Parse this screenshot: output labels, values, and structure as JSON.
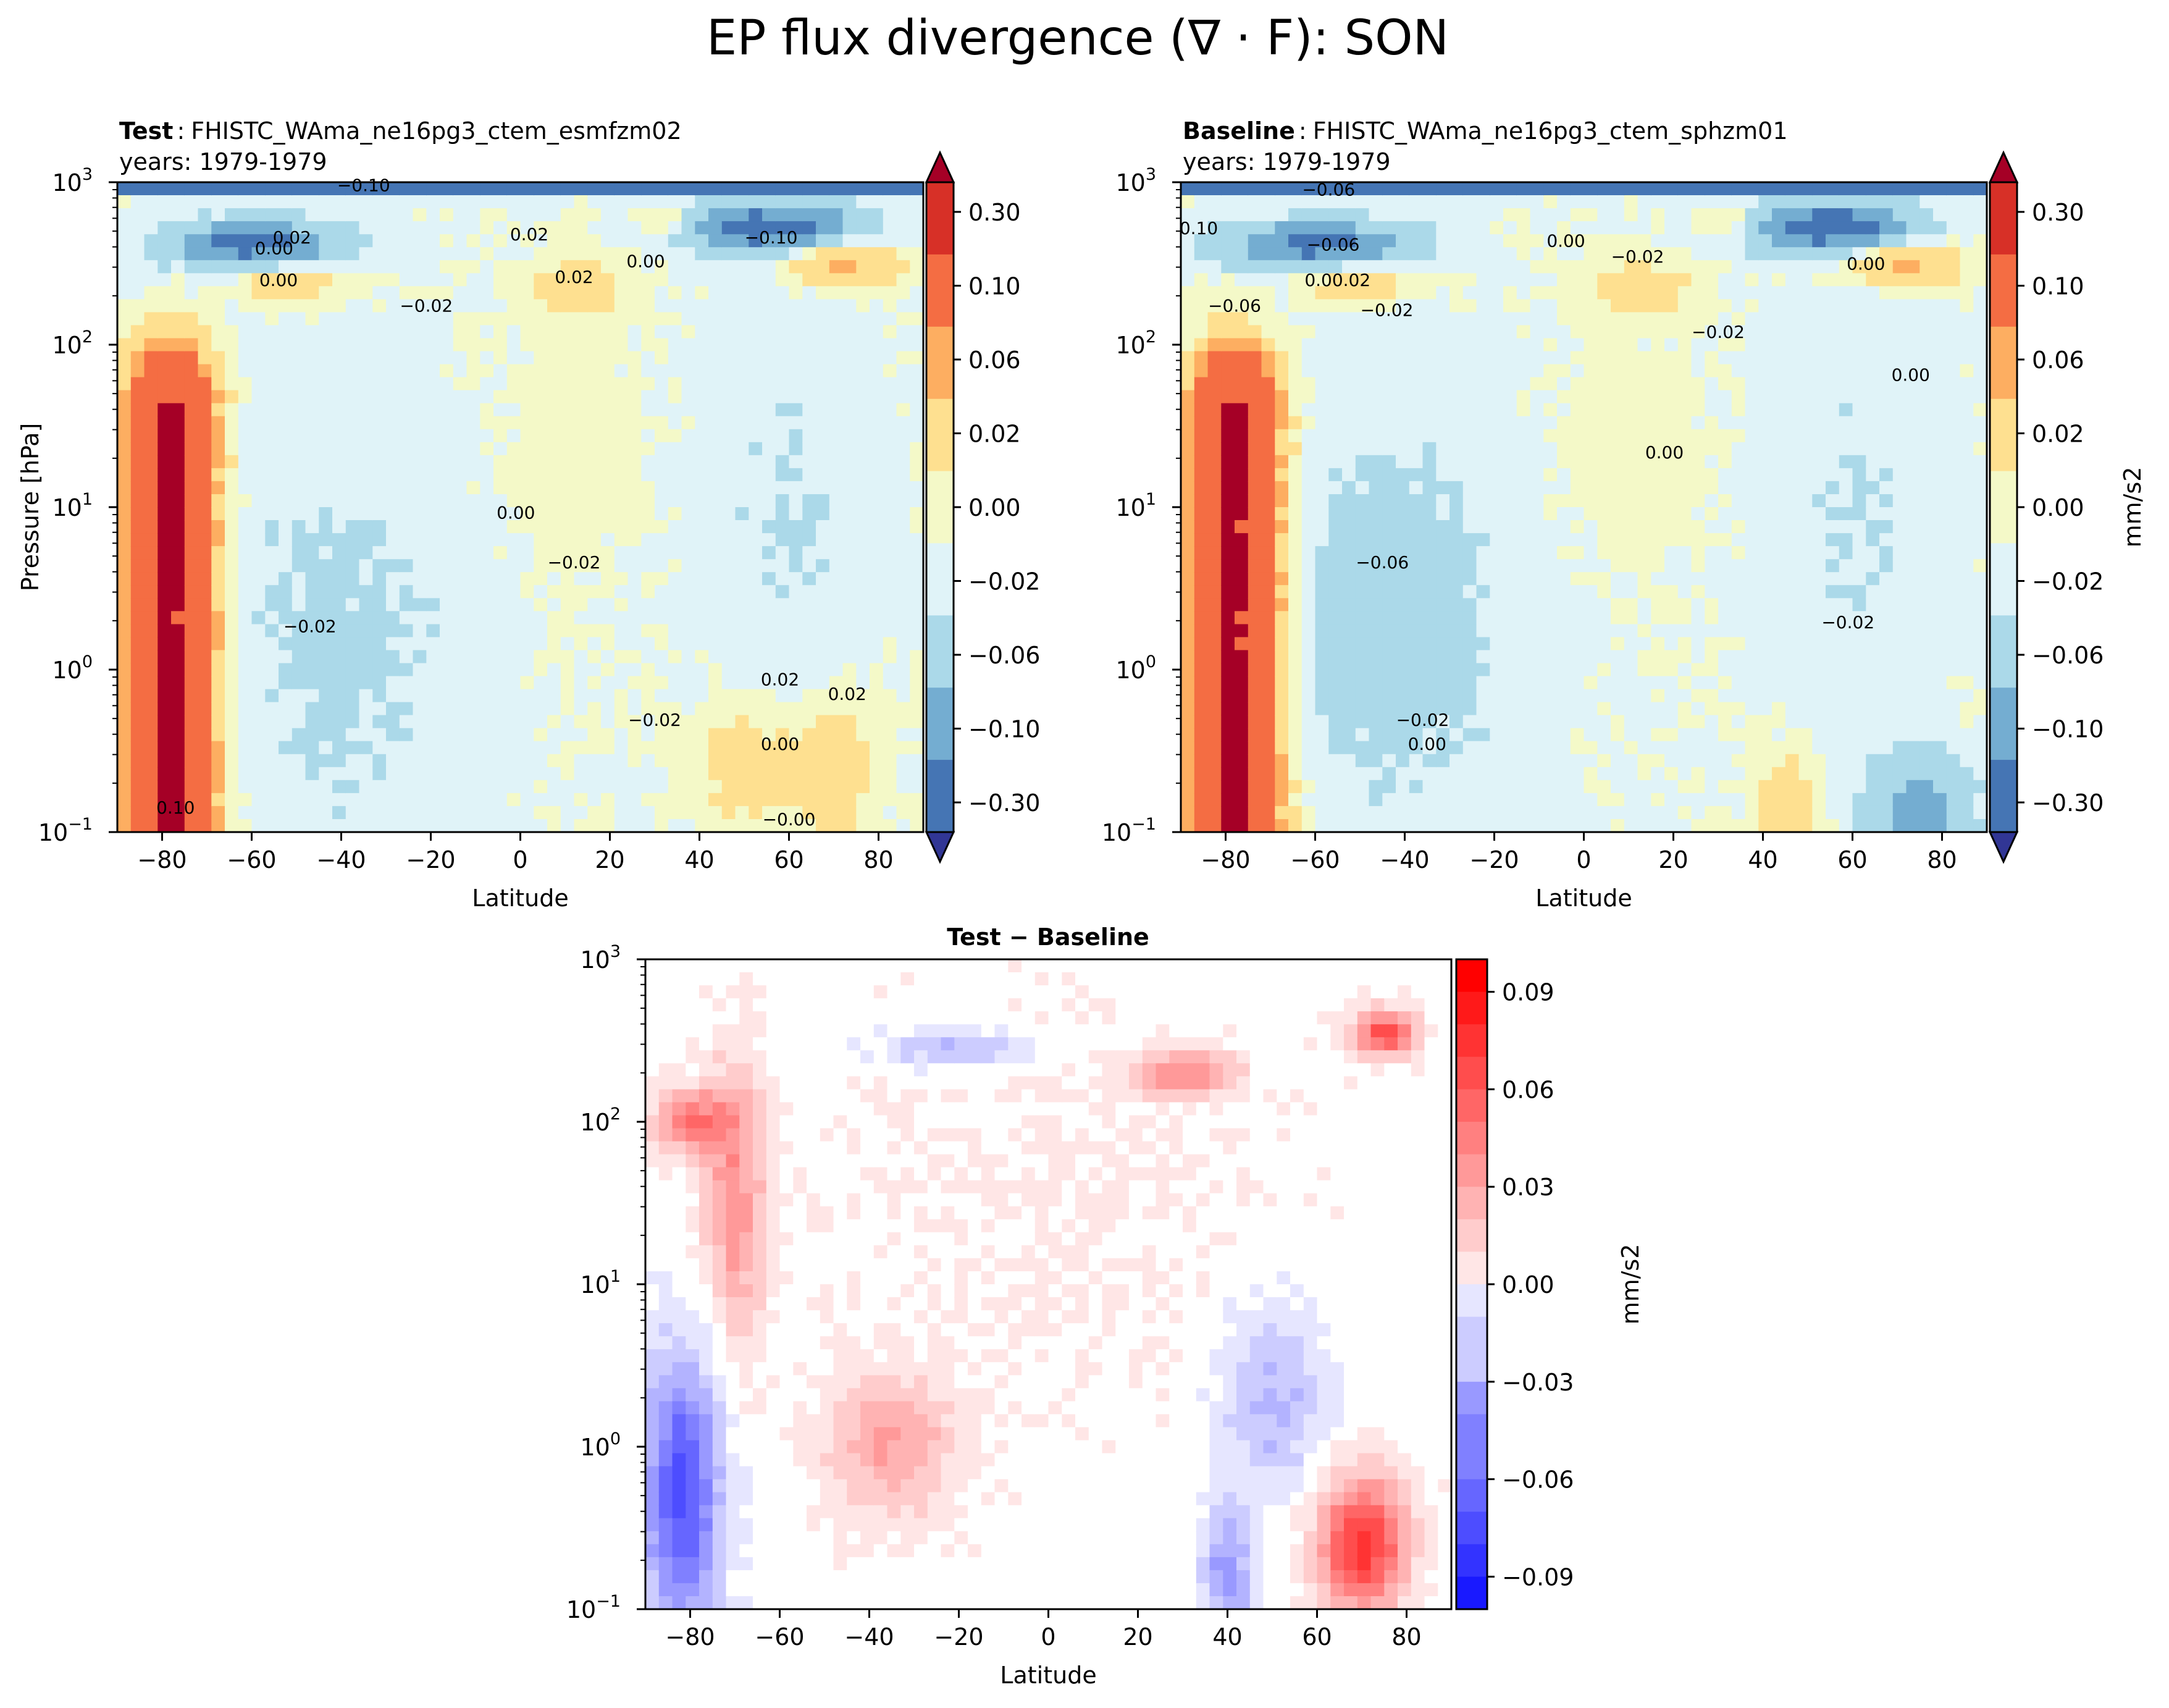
{
  "figure": {
    "title": "EP flux divergence (∇ · F): SON"
  },
  "chart_data": [
    {
      "id": "test",
      "type": "heatmap",
      "title_bold": "Test",
      "title_sep": ":",
      "title_case": "FHISTC_WAma_ne16pg3_ctem_esmfzm02",
      "subtitle": "years: 1979-1979",
      "xlabel": "Latitude",
      "ylabel": "Pressure [hPa]",
      "xlim": [
        -90,
        90
      ],
      "ylim": [
        1000,
        0.1
      ],
      "yscale": "log",
      "xticks": [
        "−80",
        "−60",
        "−40",
        "−20",
        "0",
        "20",
        "40",
        "60",
        "80"
      ],
      "xtick_values": [
        -80,
        -60,
        -40,
        -20,
        0,
        20,
        40,
        60,
        80
      ],
      "yticks": [
        {
          "base": "10",
          "exp": "−1",
          "value": 0.1
        },
        {
          "base": "10",
          "exp": "0",
          "value": 1
        },
        {
          "base": "10",
          "exp": "1",
          "value": 10
        },
        {
          "base": "10",
          "exp": "2",
          "value": 100
        },
        {
          "base": "10",
          "exp": "3",
          "value": 1000
        }
      ],
      "contour_labels": [
        {
          "text": "0.10",
          "lat": -77,
          "p": 0.13
        },
        {
          "text": "−0.02",
          "lat": 30,
          "p": 0.45
        },
        {
          "text": "−0.02",
          "lat": -47,
          "p": 1.7
        },
        {
          "text": "0.00",
          "lat": 58,
          "p": 0.32
        },
        {
          "text": "0.02",
          "lat": 58,
          "p": 0.8
        },
        {
          "text": "0.02",
          "lat": 73,
          "p": 0.65
        },
        {
          "text": "−0.00",
          "lat": 60,
          "p": 0.11
        },
        {
          "text": "−0.02",
          "lat": 12,
          "p": 4.2
        },
        {
          "text": "0.00",
          "lat": -1,
          "p": 8.5
        },
        {
          "text": "−0.02",
          "lat": -21,
          "p": 160
        },
        {
          "text": "0.00",
          "lat": -54,
          "p": 230
        },
        {
          "text": "0.02",
          "lat": 12,
          "p": 240
        },
        {
          "text": "0.00",
          "lat": -55,
          "p": 360
        },
        {
          "text": "0.02",
          "lat": -51,
          "p": 420
        },
        {
          "text": "0.00",
          "lat": 28,
          "p": 300
        },
        {
          "text": "−0.10",
          "lat": 56,
          "p": 420
        },
        {
          "text": "0.02",
          "lat": 2,
          "p": 440
        },
        {
          "text": "−0.10",
          "lat": -35,
          "p": 880
        }
      ],
      "colorbar": {
        "ticks": [
          "0.30",
          "0.10",
          "0.06",
          "0.02",
          "0.00",
          "−0.02",
          "−0.06",
          "−0.10",
          "−0.30"
        ],
        "levels": [
          -0.3,
          -0.1,
          -0.06,
          -0.02,
          0.0,
          0.02,
          0.06,
          0.1,
          0.3
        ],
        "label": "",
        "colors": [
          "#313695",
          "#4575b4",
          "#74add1",
          "#abd9e9",
          "#e0f3f8",
          "#f4f9c8",
          "#fee090",
          "#fdae61",
          "#f46d43",
          "#d73027",
          "#a50026"
        ]
      }
    },
    {
      "id": "baseline",
      "type": "heatmap",
      "title_bold": "Baseline",
      "title_sep": ":",
      "title_case": "FHISTC_WAma_ne16pg3_ctem_sphzm01",
      "subtitle": "years: 1979-1979",
      "xlabel": "Latitude",
      "ylabel": "",
      "xlim": [
        -90,
        90
      ],
      "ylim": [
        1000,
        0.1
      ],
      "yscale": "log",
      "xticks": [
        "−80",
        "−60",
        "−40",
        "−20",
        "0",
        "20",
        "40",
        "60",
        "80"
      ],
      "xtick_values": [
        -80,
        -60,
        -40,
        -20,
        0,
        20,
        40,
        60,
        80
      ],
      "yticks": [
        {
          "base": "10",
          "exp": "−1",
          "value": 0.1
        },
        {
          "base": "10",
          "exp": "0",
          "value": 1
        },
        {
          "base": "10",
          "exp": "1",
          "value": 10
        },
        {
          "base": "10",
          "exp": "2",
          "value": 100
        },
        {
          "base": "10",
          "exp": "3",
          "value": 1000
        }
      ],
      "contour_labels": [
        {
          "text": "0.00",
          "lat": -35,
          "p": 0.32
        },
        {
          "text": "−0.02",
          "lat": -36,
          "p": 0.45
        },
        {
          "text": "−0.06",
          "lat": -45,
          "p": 4.2
        },
        {
          "text": "−0.02",
          "lat": 59,
          "p": 1.8
        },
        {
          "text": "0.00",
          "lat": 18,
          "p": 20
        },
        {
          "text": "0.00",
          "lat": 73,
          "p": 60
        },
        {
          "text": "−0.06",
          "lat": -78,
          "p": 160
        },
        {
          "text": "−0.02",
          "lat": -44,
          "p": 150
        },
        {
          "text": "−0.02",
          "lat": 30,
          "p": 110
        },
        {
          "text": "0.00.02",
          "lat": -55,
          "p": 230
        },
        {
          "text": "−0.06",
          "lat": -56,
          "p": 380
        },
        {
          "text": "−0.02",
          "lat": 12,
          "p": 320
        },
        {
          "text": "0.00",
          "lat": -4,
          "p": 400
        },
        {
          "text": "0.00",
          "lat": 63,
          "p": 290
        },
        {
          "text": "−0.06",
          "lat": -57,
          "p": 830
        },
        {
          "text": "0.10",
          "lat": -86,
          "p": 480
        }
      ],
      "colorbar": {
        "ticks": [
          "0.30",
          "0.10",
          "0.06",
          "0.02",
          "0.00",
          "−0.02",
          "−0.06",
          "−0.10",
          "−0.30"
        ],
        "levels": [
          -0.3,
          -0.1,
          -0.06,
          -0.02,
          0.0,
          0.02,
          0.06,
          0.1,
          0.3
        ],
        "label": "mm/s2",
        "colors": [
          "#313695",
          "#4575b4",
          "#74add1",
          "#abd9e9",
          "#e0f3f8",
          "#f4f9c8",
          "#fee090",
          "#fdae61",
          "#f46d43",
          "#d73027",
          "#a50026"
        ]
      }
    },
    {
      "id": "diff",
      "type": "heatmap",
      "title_bold": "Test − Baseline",
      "xlabel": "Latitude",
      "ylabel": "",
      "xlim": [
        -90,
        90
      ],
      "ylim": [
        1000,
        0.1
      ],
      "yscale": "log",
      "xticks": [
        "−80",
        "−60",
        "−40",
        "−20",
        "0",
        "20",
        "40",
        "60",
        "80"
      ],
      "xtick_values": [
        -80,
        -60,
        -40,
        -20,
        0,
        20,
        40,
        60,
        80
      ],
      "yticks": [
        {
          "base": "10",
          "exp": "−1",
          "value": 0.1
        },
        {
          "base": "10",
          "exp": "0",
          "value": 1
        },
        {
          "base": "10",
          "exp": "1",
          "value": 10
        },
        {
          "base": "10",
          "exp": "2",
          "value": 100
        },
        {
          "base": "10",
          "exp": "3",
          "value": 1000
        }
      ],
      "colorbar": {
        "ticks": [
          "0.09",
          "0.06",
          "0.03",
          "0.00",
          "−0.03",
          "−0.06",
          "−0.09"
        ],
        "tick_values": [
          0.09,
          0.06,
          0.03,
          0.0,
          -0.03,
          -0.06,
          -0.09
        ],
        "range": [
          -0.1,
          0.1
        ],
        "label": "mm/s2",
        "colors": [
          "#0000ff",
          "#ffffff",
          "#ff0000"
        ]
      }
    }
  ]
}
